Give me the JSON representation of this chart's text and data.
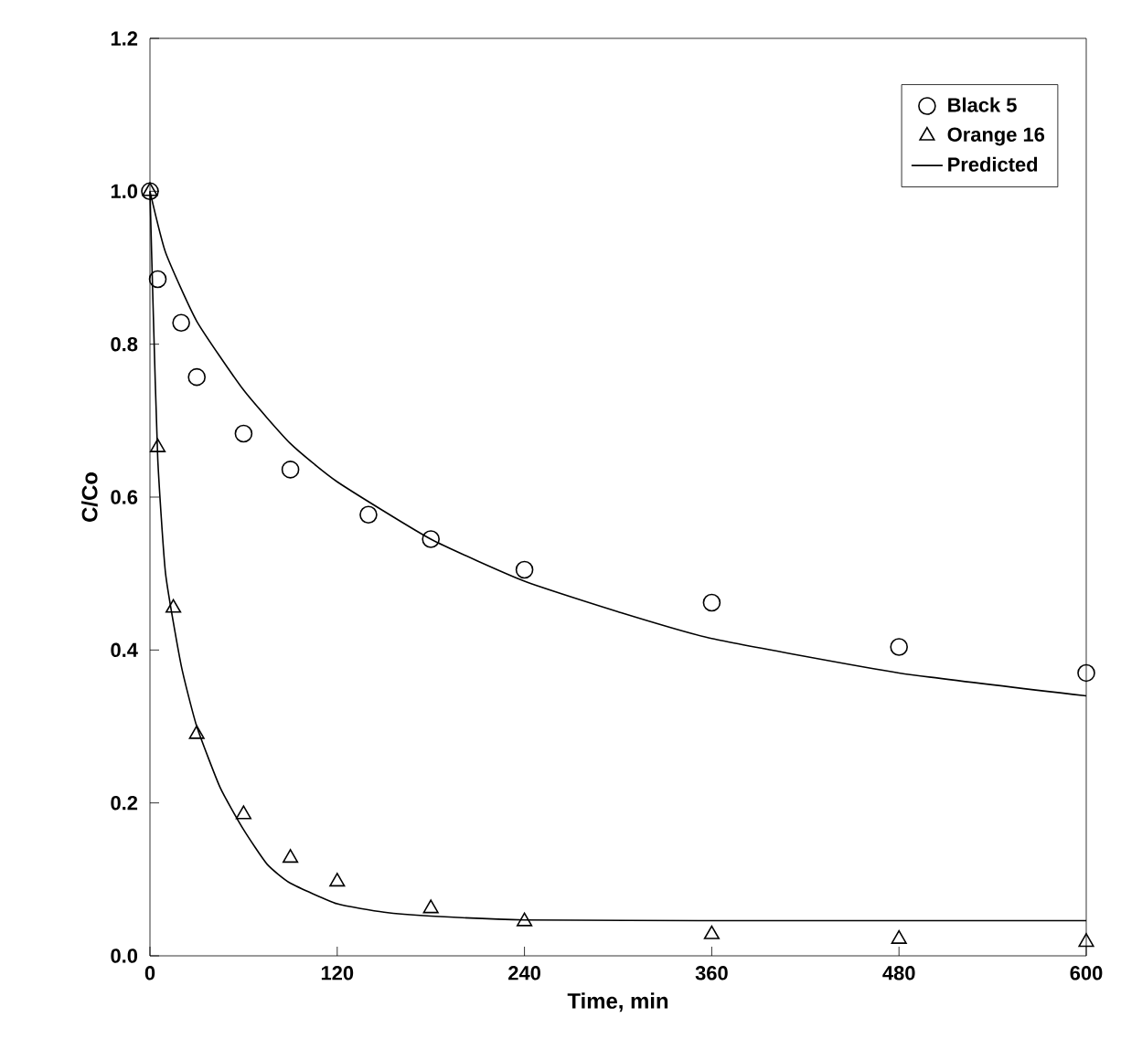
{
  "chart_data": {
    "type": "scatter",
    "xlabel": "Time, min",
    "ylabel": "C/Co",
    "xlim": [
      0,
      600
    ],
    "ylim": [
      0,
      1.2
    ],
    "xticks": [
      0,
      120,
      240,
      360,
      480,
      600
    ],
    "yticks": [
      {
        "value": 0,
        "label": "0.0"
      },
      {
        "value": 0.2,
        "label": "0.2"
      },
      {
        "value": 0.4,
        "label": "0.4"
      },
      {
        "value": 0.6,
        "label": "0.6"
      },
      {
        "value": 0.8,
        "label": "0.8"
      },
      {
        "value": 1.0,
        "label": "1.0"
      },
      {
        "value": 1.2,
        "label": "1.2"
      }
    ],
    "legend": "top right",
    "grid": false,
    "series": [
      {
        "name": "Black 5",
        "marker": "circle",
        "color": "#000000",
        "x": [
          0,
          5,
          20,
          30,
          60,
          90,
          140,
          180,
          240,
          360,
          480,
          600
        ],
        "values": [
          1.0,
          0.885,
          0.828,
          0.757,
          0.683,
          0.636,
          0.577,
          0.545,
          0.505,
          0.462,
          0.404,
          0.37
        ]
      },
      {
        "name": "Orange 16",
        "marker": "triangle",
        "color": "#000000",
        "x": [
          0,
          5,
          15,
          30,
          60,
          90,
          120,
          180,
          240,
          360,
          480,
          600
        ],
        "values": [
          1.0,
          0.665,
          0.455,
          0.29,
          0.185,
          0.128,
          0.097,
          0.062,
          0.045,
          0.028,
          0.022,
          0.018
        ]
      },
      {
        "name": "Predicted",
        "type": "line",
        "line_style": "solid",
        "color": "#000000",
        "x": [
          0,
          10,
          30,
          60,
          90,
          120,
          180,
          240,
          300,
          360,
          480,
          600
        ],
        "values": [
          1.0,
          0.92,
          0.83,
          0.74,
          0.67,
          0.62,
          0.545,
          0.49,
          0.45,
          0.415,
          0.37,
          0.34
        ]
      },
      {
        "type": "line",
        "line_style": "solid",
        "color": "#000000",
        "x": [
          0,
          2,
          5,
          10,
          20,
          30,
          45,
          60,
          75,
          90,
          120,
          150,
          180,
          240,
          360,
          600
        ],
        "values": [
          1.0,
          0.85,
          0.65,
          0.5,
          0.38,
          0.3,
          0.22,
          0.165,
          0.12,
          0.095,
          0.068,
          0.057,
          0.052,
          0.047,
          0.046,
          0.046
        ]
      }
    ]
  }
}
